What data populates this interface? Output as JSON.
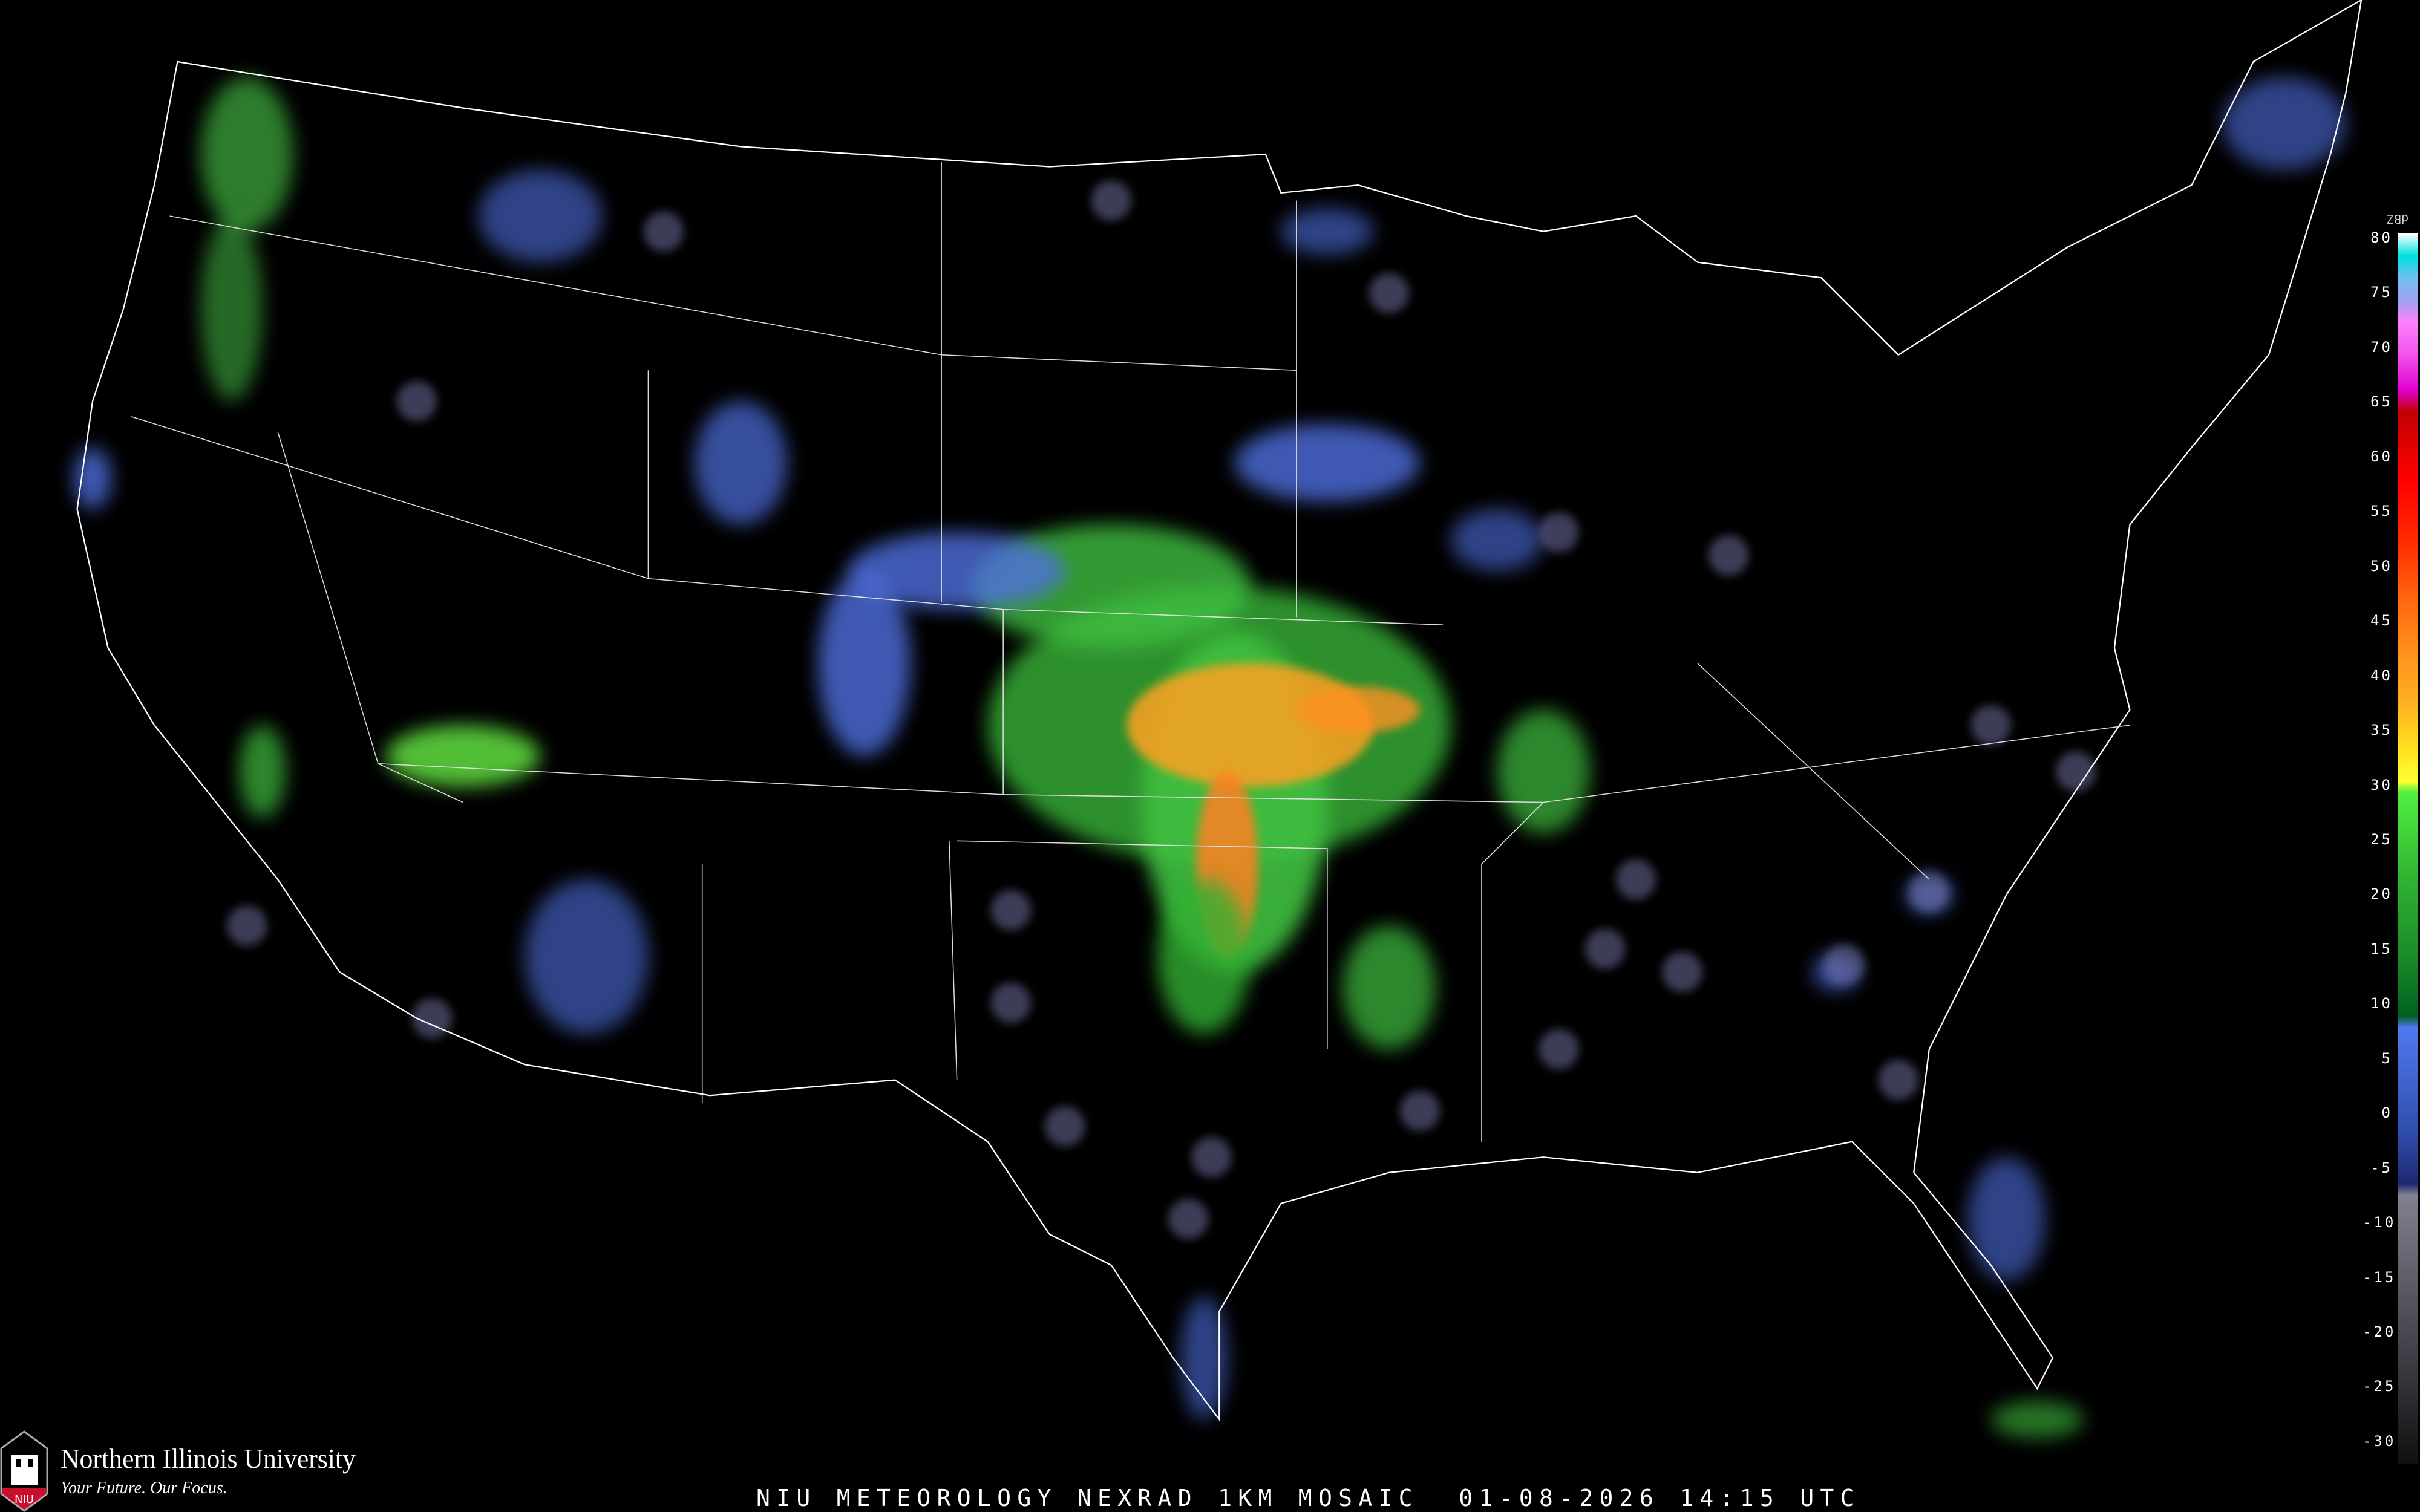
{
  "caption": "NIU METEOROLOGY NEXRAD 1KM MOSAIC  01-08-2026 14:15 UTC",
  "logo": {
    "name": "Northern Illinois University",
    "tagline": "Your Future. Our Focus.",
    "mark": "NIU"
  },
  "colorbar": {
    "unit": "dBZ",
    "ticks": [
      "80",
      "75",
      "70",
      "65",
      "60",
      "55",
      "50",
      "45",
      "40",
      "35",
      "30",
      "25",
      "20",
      "15",
      "10",
      "5",
      "0",
      "-5",
      "-10",
      "-15",
      "-20",
      "-25",
      "-30"
    ],
    "stops": [
      {
        "dbz": 80,
        "color": "#ffffff"
      },
      {
        "dbz": 78,
        "color": "#00e0e0"
      },
      {
        "dbz": 76,
        "color": "#70c0f0"
      },
      {
        "dbz": 74,
        "color": "#a0a0f0"
      },
      {
        "dbz": 72,
        "color": "#ff80ff"
      },
      {
        "dbz": 69,
        "color": "#f050e8"
      },
      {
        "dbz": 66,
        "color": "#e000d0"
      },
      {
        "dbz": 64,
        "color": "#c00000"
      },
      {
        "dbz": 58,
        "color": "#ff0000"
      },
      {
        "dbz": 52,
        "color": "#ff3000"
      },
      {
        "dbz": 47,
        "color": "#ff6a10"
      },
      {
        "dbz": 42,
        "color": "#ff9420"
      },
      {
        "dbz": 38,
        "color": "#ffb020"
      },
      {
        "dbz": 34,
        "color": "#ffe020"
      },
      {
        "dbz": 31,
        "color": "#ffff30"
      },
      {
        "dbz": 30,
        "color": "#50f040"
      },
      {
        "dbz": 22,
        "color": "#30b030"
      },
      {
        "dbz": 15,
        "color": "#188a28"
      },
      {
        "dbz": 10,
        "color": "#006020"
      },
      {
        "dbz": 9,
        "color": "#5078f0"
      },
      {
        "dbz": 0,
        "color": "#3050b0"
      },
      {
        "dbz": -5,
        "color": "#202870"
      },
      {
        "dbz": -6,
        "color": "#808090"
      },
      {
        "dbz": -20,
        "color": "#404048"
      },
      {
        "dbz": -30,
        "color": "#101010"
      }
    ]
  },
  "colors": {
    "background": "#000000",
    "state_lines": "#ffffff",
    "county_lines": "#3a3a3a",
    "roads": "#6a3a1a"
  }
}
